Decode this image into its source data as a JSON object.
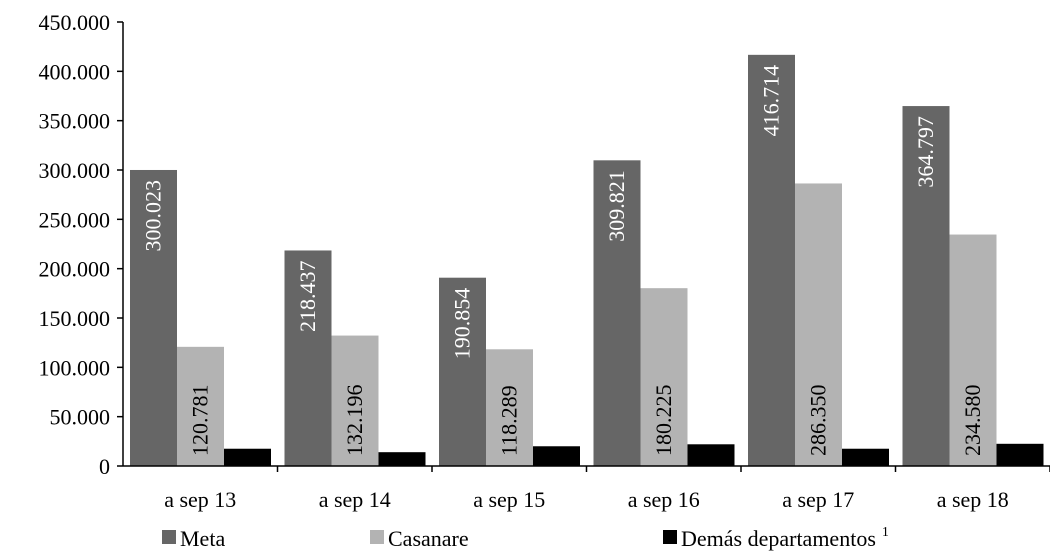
{
  "chart_data": {
    "type": "bar",
    "categories": [
      "a sep 13",
      "a sep 14",
      "a sep 15",
      "a sep 16",
      "a sep 17",
      "a sep 18"
    ],
    "series": [
      {
        "name": "Meta",
        "color": "#666666",
        "values": [
          300023,
          218437,
          190854,
          309821,
          416714,
          364797
        ],
        "labels": [
          "300.023",
          "218.437",
          "190.854",
          "309.821",
          "416.714",
          "364.797"
        ]
      },
      {
        "name": "Casanare",
        "color": "#b3b3b3",
        "values": [
          120781,
          132196,
          118289,
          180225,
          286350,
          234580
        ],
        "labels": [
          "120.781",
          "132.196",
          "118.289",
          "180.225",
          "286.350",
          "234.580"
        ]
      },
      {
        "name": "Demás departamentos",
        "name_superscript": "1",
        "color": "#000000",
        "values": [
          17500,
          14000,
          20000,
          22000,
          17500,
          22500
        ]
      }
    ],
    "ylim": [
      0,
      450000
    ],
    "yticks": [
      0,
      50000,
      100000,
      150000,
      200000,
      250000,
      300000,
      350000,
      400000,
      450000
    ],
    "ytick_labels": [
      "0",
      "50.000",
      "100.000",
      "150.000",
      "200.000",
      "250.000",
      "300.000",
      "350.000",
      "400.000",
      "450.000"
    ],
    "grid": false,
    "legend": "bottom"
  }
}
